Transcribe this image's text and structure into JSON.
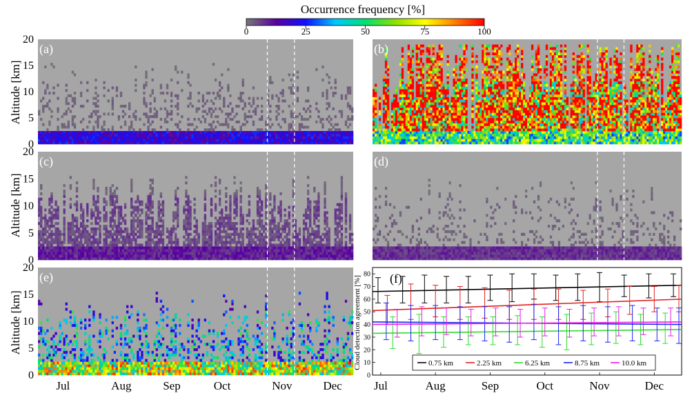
{
  "colorbar": {
    "title": "Occurrence frequency [%]",
    "ticks": [
      0,
      25,
      50,
      75,
      100
    ],
    "stops": [
      "#777777",
      "#5a00a0",
      "#1010ff",
      "#00c8ff",
      "#00e070",
      "#8ce000",
      "#ffff00",
      "#ff8000",
      "#ff0000"
    ]
  },
  "shared": {
    "ylabel": "Altitude [km]",
    "yticks": [
      0,
      5,
      10,
      15,
      20
    ],
    "months": [
      "Jul",
      "Aug",
      "Sep",
      "Oct",
      "Nov",
      "Dec"
    ],
    "missing_color": "#a6a6a6"
  },
  "chart_data": [
    {
      "type": "heatmap",
      "panel": "(a)",
      "ylabel": "Altitude [km]",
      "ylim": [
        0,
        20
      ],
      "xlabels": [
        "Jul",
        "Aug",
        "Sep",
        "Oct",
        "Nov",
        "Dec"
      ],
      "pattern": {
        "low_level_pct": 20,
        "mid_level_pct": 2,
        "high_level_pct": 1,
        "mid_coverage": 0.28,
        "top_km": 20,
        "gap_markers_month_fraction": [
          3.6,
          4.05
        ]
      }
    },
    {
      "type": "heatmap",
      "panel": "(b)",
      "ylim": [
        0,
        20
      ],
      "xlabels": [
        "Jul",
        "Aug",
        "Sep",
        "Oct",
        "Nov",
        "Dec"
      ],
      "pattern": {
        "low_level_pct": 55,
        "mid_level_pct": 90,
        "high_level_pct": 100,
        "mid_coverage": 1.0,
        "top_km": 19,
        "gap_markers_month_fraction": [
          3.6,
          4.05
        ]
      }
    },
    {
      "type": "heatmap",
      "panel": "(c)",
      "ylabel": "Altitude [km]",
      "ylim": [
        0,
        20
      ],
      "xlabels": [
        "Jul",
        "Aug",
        "Sep",
        "Oct",
        "Nov",
        "Dec"
      ],
      "pattern": {
        "low_level_pct": 10,
        "mid_level_pct": 5,
        "high_level_pct": 2,
        "mid_coverage": 0.75,
        "top_km": 20,
        "gap_markers_month_fraction": [
          3.6,
          4.05
        ]
      }
    },
    {
      "type": "heatmap",
      "panel": "(d)",
      "ylim": [
        0,
        20
      ],
      "xlabels": [
        "Jul",
        "Aug",
        "Sep",
        "Oct",
        "Nov",
        "Dec"
      ],
      "pattern": {
        "low_level_pct": 8,
        "mid_level_pct": 2,
        "high_level_pct": 1,
        "mid_coverage": 0.2,
        "top_km": 20,
        "gap_markers_month_fraction": [
          3.6,
          4.05
        ]
      }
    },
    {
      "type": "heatmap",
      "panel": "(e)",
      "ylabel": "Altitude [km]",
      "ylim": [
        0,
        20
      ],
      "xlabels": [
        "Jul",
        "Aug",
        "Sep",
        "Oct",
        "Nov",
        "Dec"
      ],
      "pattern": {
        "low_level_pct": 70,
        "mid_level_pct": 35,
        "high_level_pct": 20,
        "mid_coverage": 0.35,
        "top_km": 20,
        "gap_markers_month_fraction": [
          3.6,
          4.05
        ]
      }
    },
    {
      "type": "line",
      "panel": "(f)",
      "ylabel": "Cloud detection agreement [%]",
      "ylim": [
        0,
        85
      ],
      "yticks": [
        0,
        10,
        20,
        30,
        40,
        50,
        60,
        70,
        80
      ],
      "x": [
        "Jul",
        "Aug",
        "Sep",
        "Oct",
        "Nov",
        "Dec"
      ],
      "xlim": [
        -0.15,
        5.5
      ],
      "legend_position": "bottom",
      "series": [
        {
          "name": "0.75 km",
          "color": "#000000",
          "trend": [
            66,
            71
          ],
          "points": [
            [
              -0.05,
              66,
              57,
              77
            ],
            [
              0.4,
              67,
              57,
              78
            ],
            [
              0.8,
              67,
              57,
              79
            ],
            [
              1.2,
              66,
              57,
              78
            ],
            [
              1.6,
              67,
              57,
              78
            ],
            [
              2.0,
              68,
              59,
              79
            ],
            [
              2.4,
              68,
              58,
              80
            ],
            [
              2.8,
              69,
              60,
              80
            ],
            [
              3.2,
              68,
              59,
              79
            ],
            [
              3.6,
              69,
              59,
              80
            ],
            [
              4.0,
              69,
              58,
              81
            ],
            [
              4.45,
              70,
              62,
              79
            ],
            [
              4.9,
              70,
              61,
              80
            ],
            [
              5.35,
              71,
              62,
              80
            ]
          ]
        },
        {
          "name": "2.25 km",
          "color": "#e0201e",
          "trend": [
            51,
            60
          ],
          "points": [
            [
              0.12,
              52,
              40,
              63
            ],
            [
              0.55,
              58,
              44,
              72
            ],
            [
              1.0,
              58,
              46,
              71
            ],
            [
              1.45,
              57,
              44,
              70
            ],
            [
              1.9,
              57,
              45,
              69
            ],
            [
              2.35,
              55,
              44,
              67
            ],
            [
              2.8,
              56,
              44,
              68
            ],
            [
              3.25,
              56,
              44,
              68
            ],
            [
              3.7,
              55,
              44,
              67
            ],
            [
              4.15,
              57,
              46,
              68
            ],
            [
              4.55,
              59,
              48,
              70
            ],
            [
              5.0,
              60,
              50,
              70
            ],
            [
              5.45,
              60,
              50,
              71
            ]
          ]
        },
        {
          "name": "6.25 km",
          "color": "#2ed82e",
          "trend": [
            33,
            36
          ],
          "points": [
            [
              0.22,
              33,
              21,
              46
            ],
            [
              0.7,
              33,
              17,
              48
            ],
            [
              1.15,
              34,
              22,
              46
            ],
            [
              1.6,
              35,
              24,
              46
            ],
            [
              2.05,
              35,
              24,
              46
            ],
            [
              2.5,
              36,
              24,
              47
            ],
            [
              2.95,
              34,
              22,
              46
            ],
            [
              3.4,
              34,
              20,
              48
            ],
            [
              3.85,
              37,
              24,
              49
            ],
            [
              4.3,
              38,
              25,
              50
            ],
            [
              4.75,
              36,
              24,
              48
            ],
            [
              5.2,
              37,
              25,
              49
            ]
          ]
        },
        {
          "name": "8.75 km",
          "color": "#1a22ee",
          "trend": [
            42,
            40
          ],
          "points": [
            [
              0.1,
              43,
              28,
              57
            ],
            [
              0.55,
              41,
              27,
              55
            ],
            [
              1.0,
              42,
              28,
              55
            ],
            [
              1.45,
              41,
              28,
              54
            ],
            [
              1.9,
              41,
              27,
              54
            ],
            [
              2.35,
              40,
              26,
              54
            ],
            [
              2.8,
              42,
              28,
              56
            ],
            [
              3.25,
              39,
              24,
              54
            ],
            [
              3.7,
              41,
              27,
              55
            ],
            [
              4.15,
              40,
              26,
              54
            ],
            [
              4.6,
              41,
              27,
              55
            ],
            [
              5.05,
              40,
              27,
              53
            ],
            [
              5.45,
              39,
              25,
              53
            ]
          ]
        },
        {
          "name": "10.0 km",
          "color": "#e81ae8",
          "trend": [
            40,
            42
          ],
          "points": [
            [
              0.3,
              41,
              30,
              52
            ],
            [
              0.75,
              42,
              31,
              54
            ],
            [
              1.2,
              42,
              32,
              53
            ],
            [
              1.65,
              41,
              31,
              52
            ],
            [
              2.1,
              42,
              31,
              53
            ],
            [
              2.55,
              41,
              30,
              52
            ],
            [
              3.0,
              42,
              31,
              53
            ],
            [
              3.45,
              41,
              30,
              52
            ],
            [
              3.9,
              42,
              31,
              53
            ],
            [
              4.35,
              42,
              31,
              54
            ],
            [
              4.8,
              42,
              32,
              53
            ],
            [
              5.3,
              42,
              31,
              53
            ]
          ]
        }
      ]
    }
  ]
}
